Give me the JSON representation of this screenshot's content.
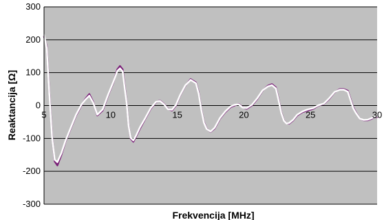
{
  "chart_data": {
    "type": "line",
    "title": "",
    "xlabel": "Frekvencija [MHz]",
    "ylabel": "Reaktancija [Ω]",
    "xlim": [
      5,
      30
    ],
    "ylim": [
      -300,
      300
    ],
    "x_ticks": [
      "5",
      "10",
      "15",
      "20",
      "25",
      "30"
    ],
    "y_ticks": [
      "300",
      "200",
      "100",
      "0",
      "-100",
      "-200",
      "-300"
    ],
    "grid": true,
    "legend": "none",
    "colors": {
      "plot_background": "#c0c0c0",
      "series_1": "#7a1f78",
      "series_2": "#ffffff"
    },
    "series": [
      {
        "x": [
          5.0,
          5.2,
          5.4,
          5.6,
          5.8,
          6.0,
          6.3,
          6.6,
          7.0,
          7.4,
          7.8,
          8.1,
          8.4,
          8.7,
          9.0,
          9.4,
          9.8,
          10.2,
          10.5,
          10.7,
          10.9,
          11.05,
          11.2,
          11.35,
          11.5,
          11.7,
          11.9,
          12.2,
          12.6,
          13.0,
          13.4,
          13.7,
          14.0,
          14.3,
          14.6,
          14.9,
          15.2,
          15.6,
          16.0,
          16.4,
          16.6,
          16.8,
          17.0,
          17.2,
          17.5,
          17.8,
          18.2,
          18.6,
          19.0,
          19.3,
          19.6,
          19.9,
          20.2,
          20.6,
          21.0,
          21.4,
          21.8,
          22.1,
          22.4,
          22.6,
          22.8,
          23.0,
          23.2,
          23.4,
          23.7,
          24.0,
          24.4,
          24.8,
          25.2,
          25.6,
          26.0,
          26.4,
          26.8,
          27.2,
          27.5,
          27.8,
          28.0,
          28.2,
          28.4,
          28.7,
          29.0,
          29.3,
          29.6,
          29.8,
          30.0
        ],
        "y": [
          210,
          180,
          40,
          -90,
          -170,
          -182,
          -150,
          -110,
          -70,
          -30,
          0,
          20,
          35,
          10,
          -30,
          -15,
          30,
          70,
          110,
          120,
          110,
          60,
          10,
          -60,
          -100,
          -110,
          -95,
          -70,
          -40,
          -10,
          10,
          15,
          5,
          -10,
          -15,
          0,
          30,
          60,
          80,
          70,
          40,
          -10,
          -50,
          -70,
          -80,
          -70,
          -40,
          -20,
          -5,
          0,
          5,
          -5,
          -10,
          0,
          20,
          45,
          60,
          65,
          55,
          20,
          -20,
          -45,
          -55,
          -55,
          -45,
          -30,
          -20,
          -15,
          -10,
          0,
          5,
          20,
          40,
          50,
          50,
          45,
          20,
          -5,
          -20,
          -40,
          -45,
          -45,
          -40,
          -35,
          -35
        ]
      },
      {
        "x": [
          5.0,
          5.2,
          5.4,
          5.6,
          5.8,
          6.0,
          6.3,
          6.6,
          7.0,
          7.4,
          7.8,
          8.1,
          8.4,
          8.7,
          9.0,
          9.4,
          9.8,
          10.2,
          10.5,
          10.7,
          10.9,
          11.05,
          11.2,
          11.35,
          11.5,
          11.7,
          11.9,
          12.2,
          12.6,
          13.0,
          13.4,
          13.7,
          14.0,
          14.3,
          14.6,
          14.9,
          15.2,
          15.6,
          16.0,
          16.4,
          16.6,
          16.8,
          17.0,
          17.2,
          17.5,
          17.8,
          18.2,
          18.6,
          19.0,
          19.3,
          19.6,
          19.9,
          20.2,
          20.6,
          21.0,
          21.4,
          21.8,
          22.1,
          22.4,
          22.6,
          22.8,
          23.0,
          23.2,
          23.4,
          23.7,
          24.0,
          24.4,
          24.8,
          25.2,
          25.6,
          26.0,
          26.4,
          26.8,
          27.2,
          27.5,
          27.8,
          28.0,
          28.2,
          28.4,
          28.7,
          29.0,
          29.3,
          29.6,
          29.8,
          30.0
        ],
        "y": [
          215,
          175,
          35,
          -95,
          -165,
          -172,
          -145,
          -108,
          -68,
          -28,
          2,
          18,
          30,
          8,
          -28,
          -12,
          32,
          72,
          105,
          113,
          104,
          55,
          8,
          -62,
          -98,
          -106,
          -92,
          -66,
          -38,
          -8,
          11,
          14,
          4,
          -11,
          -13,
          2,
          31,
          61,
          78,
          68,
          37,
          -12,
          -52,
          -71,
          -79,
          -68,
          -38,
          -18,
          -3,
          2,
          4,
          -6,
          -8,
          2,
          22,
          46,
          58,
          62,
          52,
          17,
          -22,
          -46,
          -55,
          -53,
          -43,
          -28,
          -18,
          -12,
          -8,
          1,
          6,
          22,
          41,
          48,
          48,
          42,
          17,
          -8,
          -22,
          -40,
          -44,
          -43,
          -38,
          -34,
          -33
        ]
      }
    ]
  }
}
